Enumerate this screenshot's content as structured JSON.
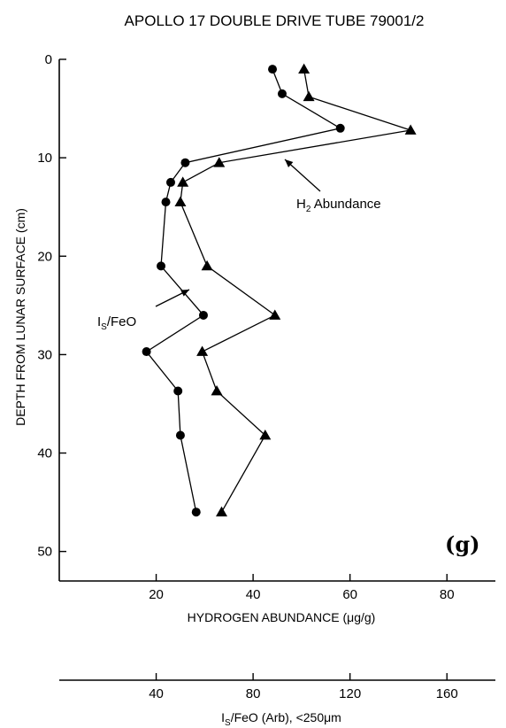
{
  "chart_data": {
    "type": "line",
    "title": "APOLLO 17 DOUBLE DRIVE TUBE 79001/2",
    "panel_label": "(g)",
    "ylabel": "DEPTH FROM LUNAR SURFACE (cm)",
    "xlabel": "HYDROGEN ABUNDANCE (μg/g)",
    "x2label": "I_S/FeO (Arb), <250μm",
    "xlim": [
      0,
      90
    ],
    "x2lim": [
      0,
      180
    ],
    "ylim": [
      0,
      53
    ],
    "y_inverted": true,
    "xticks": [
      20,
      40,
      60,
      80
    ],
    "x2ticks": [
      40,
      80,
      120,
      160
    ],
    "yticks": [
      0,
      10,
      20,
      30,
      40,
      50
    ],
    "grid": false,
    "series": [
      {
        "name": "H2 Abundance",
        "marker": "triangle",
        "axis": "bottom",
        "x": [
          50.5,
          51.5,
          72.5,
          33,
          25.5,
          25,
          30.5,
          44.5,
          29.5,
          32.5,
          42.5,
          33.5
        ],
        "y": [
          1,
          3.8,
          7.2,
          10.5,
          12.5,
          14.5,
          21,
          26,
          29.7,
          33.7,
          38.2,
          46
        ]
      },
      {
        "name": "Is/FeO",
        "marker": "circle",
        "axis": "top",
        "x": [
          88,
          92,
          116,
          52,
          46,
          44,
          42,
          59.5,
          36,
          49,
          50,
          56.5
        ],
        "y": [
          1,
          3.5,
          7,
          10.5,
          12.5,
          14.5,
          21,
          26,
          29.7,
          33.7,
          38.2,
          46
        ]
      }
    ],
    "annotations": [
      {
        "text": "H",
        "sub": "2",
        "rest": " Abundance",
        "series": "H2 Abundance"
      },
      {
        "text": "I",
        "sub": "S",
        "rest": "/FeO",
        "series": "Is/FeO"
      }
    ]
  }
}
